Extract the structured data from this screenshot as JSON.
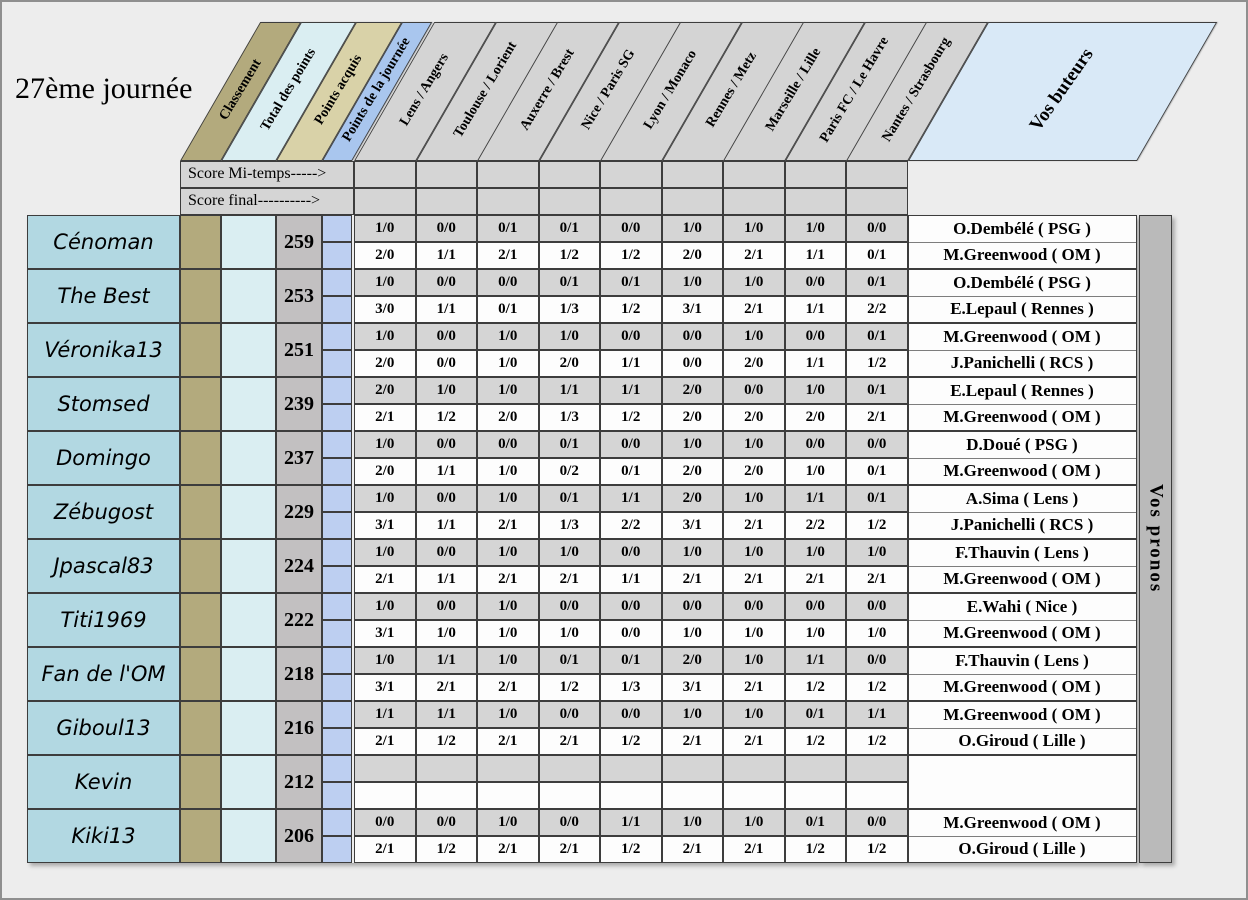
{
  "page": {
    "title": "27ème journée"
  },
  "header": {
    "stat_columns": [
      "Classement",
      "Total des points",
      "Points acquis",
      "Points de la journée"
    ],
    "match_columns": [
      "Lens / Angers",
      "Toulouse / Lorient",
      "Auxerre / Brest",
      "Nice / Paris SG",
      "Lyon / Monaco",
      "Rennes / Metz",
      "Marseille / Lille",
      "Paris FC / Le Havre",
      "Nantes / Strasbourg"
    ],
    "buteurs_label": "Vos buteurs",
    "pronos_label": "Vos pronos"
  },
  "score_rows": {
    "halftime_label": "Score Mi-temps----->",
    "final_label": "Score final---------->"
  },
  "colors": {
    "classement_header": "#b3aa7d",
    "total_points_header": "#daeef2",
    "points_acquis_header": "#d9d2a8",
    "points_journee_header": "#a9c6ee",
    "match_header": "#d4d4d4",
    "buteurs_header": "#d9e9f7",
    "player_name_cell": "#b2d8e2",
    "points_acquis_cell": "#c2c0c1",
    "points_journee_cell": "#bdcff1",
    "halftime_row_cell": "#d5d5d5",
    "final_row_cell": "#fdfdfd",
    "pronos_strip": "#bababa"
  },
  "players": [
    {
      "name": "Cénoman",
      "points": "259",
      "halftime": [
        "1/0",
        "0/0",
        "0/1",
        "0/1",
        "0/0",
        "1/0",
        "1/0",
        "1/0",
        "0/0"
      ],
      "final": [
        "2/0",
        "1/1",
        "2/1",
        "1/2",
        "1/2",
        "2/0",
        "2/1",
        "1/1",
        "0/1"
      ],
      "buteurs": [
        "O.Dembélé ( PSG )",
        "M.Greenwood ( OM )"
      ]
    },
    {
      "name": "The Best",
      "points": "253",
      "halftime": [
        "1/0",
        "0/0",
        "0/0",
        "0/1",
        "0/1",
        "1/0",
        "1/0",
        "0/0",
        "0/1"
      ],
      "final": [
        "3/0",
        "1/1",
        "0/1",
        "1/3",
        "1/2",
        "3/1",
        "2/1",
        "1/1",
        "2/2"
      ],
      "buteurs": [
        "O.Dembélé ( PSG )",
        "E.Lepaul ( Rennes )"
      ]
    },
    {
      "name": "Véronika13",
      "points": "251",
      "halftime": [
        "1/0",
        "0/0",
        "1/0",
        "1/0",
        "0/0",
        "0/0",
        "1/0",
        "0/0",
        "0/1"
      ],
      "final": [
        "2/0",
        "0/0",
        "1/0",
        "2/0",
        "1/1",
        "0/0",
        "2/0",
        "1/1",
        "1/2"
      ],
      "buteurs": [
        "M.Greenwood ( OM )",
        "J.Panichelli ( RCS )"
      ]
    },
    {
      "name": "Stomsed",
      "points": "239",
      "halftime": [
        "2/0",
        "1/0",
        "1/0",
        "1/1",
        "1/1",
        "2/0",
        "0/0",
        "1/0",
        "0/1"
      ],
      "final": [
        "2/1",
        "1/2",
        "2/0",
        "1/3",
        "1/2",
        "2/0",
        "2/0",
        "2/0",
        "2/1"
      ],
      "buteurs": [
        "E.Lepaul ( Rennes )",
        "M.Greenwood ( OM )"
      ]
    },
    {
      "name": "Domingo",
      "points": "237",
      "halftime": [
        "1/0",
        "0/0",
        "0/0",
        "0/1",
        "0/0",
        "1/0",
        "1/0",
        "0/0",
        "0/0"
      ],
      "final": [
        "2/0",
        "1/1",
        "1/0",
        "0/2",
        "0/1",
        "2/0",
        "2/0",
        "1/0",
        "0/1"
      ],
      "buteurs": [
        "D.Doué ( PSG )",
        "M.Greenwood ( OM )"
      ]
    },
    {
      "name": "Zébugost",
      "points": "229",
      "halftime": [
        "1/0",
        "0/0",
        "1/0",
        "0/1",
        "1/1",
        "2/0",
        "1/0",
        "1/1",
        "0/1"
      ],
      "final": [
        "3/1",
        "1/1",
        "2/1",
        "1/3",
        "2/2",
        "3/1",
        "2/1",
        "2/2",
        "1/2"
      ],
      "buteurs": [
        "A.Sima ( Lens )",
        "J.Panichelli ( RCS )"
      ]
    },
    {
      "name": "Jpascal83",
      "points": "224",
      "halftime": [
        "1/0",
        "0/0",
        "1/0",
        "1/0",
        "0/0",
        "1/0",
        "1/0",
        "1/0",
        "1/0"
      ],
      "final": [
        "2/1",
        "1/1",
        "2/1",
        "2/1",
        "1/1",
        "2/1",
        "2/1",
        "2/1",
        "2/1"
      ],
      "buteurs": [
        "F.Thauvin ( Lens )",
        "M.Greenwood ( OM )"
      ]
    },
    {
      "name": "Titi1969",
      "points": "222",
      "halftime": [
        "1/0",
        "0/0",
        "1/0",
        "0/0",
        "0/0",
        "0/0",
        "0/0",
        "0/0",
        "0/0"
      ],
      "final": [
        "3/1",
        "1/0",
        "1/0",
        "1/0",
        "0/0",
        "1/0",
        "1/0",
        "1/0",
        "1/0"
      ],
      "buteurs": [
        "E.Wahi ( Nice )",
        "M.Greenwood ( OM )"
      ]
    },
    {
      "name": "Fan de l'OM",
      "points": "218",
      "halftime": [
        "1/0",
        "1/1",
        "1/0",
        "0/1",
        "0/1",
        "2/0",
        "1/0",
        "1/1",
        "0/0"
      ],
      "final": [
        "3/1",
        "2/1",
        "2/1",
        "1/2",
        "1/3",
        "3/1",
        "2/1",
        "1/2",
        "1/2"
      ],
      "buteurs": [
        "F.Thauvin ( Lens )",
        "M.Greenwood ( OM )"
      ]
    },
    {
      "name": "Giboul13",
      "points": "216",
      "halftime": [
        "1/1",
        "1/1",
        "1/0",
        "0/0",
        "0/0",
        "1/0",
        "1/0",
        "0/1",
        "1/1"
      ],
      "final": [
        "2/1",
        "1/2",
        "2/1",
        "2/1",
        "1/2",
        "2/1",
        "2/1",
        "1/2",
        "1/2"
      ],
      "buteurs": [
        "M.Greenwood ( OM )",
        "O.Giroud ( Lille )"
      ]
    },
    {
      "name": "Kevin",
      "points": "212",
      "halftime": [
        "",
        "",
        "",
        "",
        "",
        "",
        "",
        "",
        ""
      ],
      "final": [
        "",
        "",
        "",
        "",
        "",
        "",
        "",
        "",
        ""
      ],
      "buteurs": [
        "",
        ""
      ]
    },
    {
      "name": "Kiki13",
      "points": "206",
      "halftime": [
        "0/0",
        "0/0",
        "1/0",
        "0/0",
        "1/1",
        "1/0",
        "1/0",
        "0/1",
        "0/0"
      ],
      "final": [
        "2/1",
        "1/2",
        "2/1",
        "2/1",
        "1/2",
        "2/1",
        "2/1",
        "1/2",
        "1/2"
      ],
      "buteurs": [
        "M.Greenwood ( OM )",
        "O.Giroud ( Lille )"
      ]
    }
  ]
}
